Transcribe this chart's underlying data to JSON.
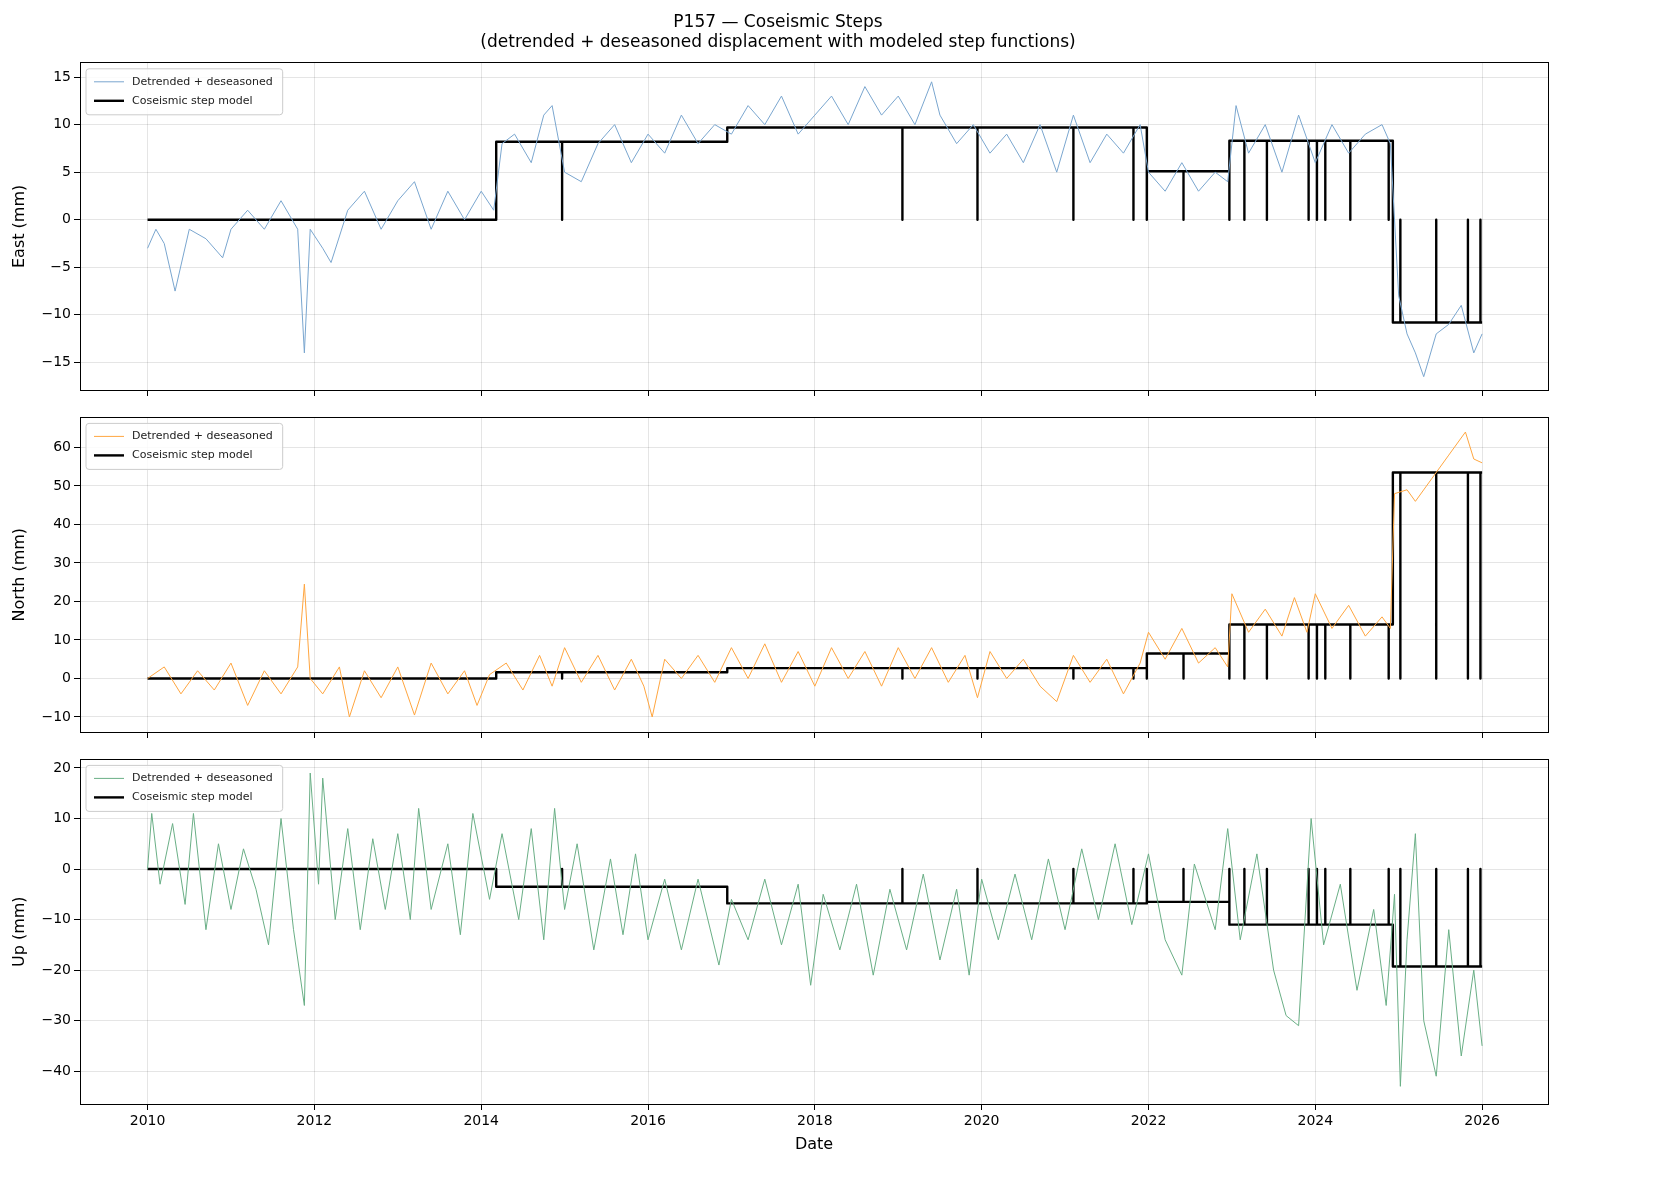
{
  "chart_data": [
    {
      "type": "line",
      "title": "P157 — Coseismic Steps",
      "subtitle": "(detrended + deseasoned displacement with modeled step functions)",
      "ylabel": "East (mm)",
      "xlim": [
        2009.19,
        2026.79
      ],
      "xticks": [
        2010,
        2012,
        2014,
        2016,
        2018,
        2020,
        2022,
        2024,
        2026
      ],
      "ylim": [
        -17.9,
        16.5
      ],
      "yticks": [
        -15,
        -10,
        -5,
        0,
        5,
        10,
        15
      ],
      "grid": true,
      "legend": "top left",
      "tick_labels": "y",
      "marker": "none",
      "line_style": "solid",
      "series": [
        {
          "name": "Detrended + deseasoned",
          "color": "#7aa6cf",
          "x": [
            2010,
            2010.1,
            2010.2,
            2010.33,
            2010.5,
            2010.7,
            2010.9,
            2011.0,
            2011.2,
            2011.4,
            2011.6,
            2011.8,
            2011.88,
            2011.95,
            2012.1,
            2012.2,
            2012.4,
            2012.6,
            2012.8,
            2013,
            2013.2,
            2013.4,
            2013.6,
            2013.8,
            2014.0,
            2014.15,
            2014.25,
            2014.4,
            2014.6,
            2014.75,
            2014.85,
            2015.0,
            2015.2,
            2015.4,
            2015.6,
            2015.8,
            2016,
            2016.2,
            2016.4,
            2016.6,
            2016.8,
            2017.0,
            2017.2,
            2017.4,
            2017.6,
            2017.8,
            2018,
            2018.2,
            2018.4,
            2018.6,
            2018.8,
            2019.0,
            2019.2,
            2019.4,
            2019.5,
            2019.7,
            2019.9,
            2020.1,
            2020.3,
            2020.5,
            2020.7,
            2020.9,
            2021.1,
            2021.3,
            2021.5,
            2021.7,
            2021.9,
            2022.0,
            2022.2,
            2022.4,
            2022.6,
            2022.8,
            2022.95,
            2023.05,
            2023.2,
            2023.4,
            2023.6,
            2023.8,
            2024.0,
            2024.2,
            2024.4,
            2024.6,
            2024.8,
            2024.9,
            2025.0,
            2025.1,
            2025.2,
            2025.3,
            2025.45,
            2025.6,
            2025.75,
            2025.9,
            2026.0
          ],
          "values": [
            -3,
            -1,
            -2.5,
            -7.5,
            -1,
            -2,
            -4,
            -1,
            1,
            -1,
            2,
            -1,
            -14,
            -1,
            -3,
            -4.5,
            1,
            3,
            -1,
            2,
            4,
            -1,
            3,
            0,
            3,
            1,
            8,
            9,
            6,
            11,
            12,
            5,
            4,
            8,
            10,
            6,
            9,
            7,
            11,
            8,
            10,
            9,
            12,
            10,
            13,
            9,
            11,
            13,
            10,
            14,
            11,
            13,
            10,
            14.5,
            11,
            8,
            10,
            7,
            9,
            6,
            10,
            5,
            11,
            6,
            9,
            7,
            10,
            5,
            3,
            6,
            3,
            5,
            4,
            12,
            7,
            10,
            5,
            11,
            6,
            10,
            7,
            9,
            10,
            8,
            -8,
            -12,
            -14,
            -16.5,
            -12,
            -11,
            -9,
            -14,
            -12
          ]
        },
        {
          "name": "Coseismic step model",
          "color": "#000000",
          "x": [
            2010,
            2014.18,
            2014.18,
            2014.97,
            2014.97,
            2014.97,
            2016.95,
            2016.95,
            2019.05,
            2019.05,
            2019.05,
            2019.95,
            2019.95,
            2019.95,
            2021.1,
            2021.1,
            2021.1,
            2021.82,
            2021.82,
            2021.82,
            2021.98,
            2021.98,
            2021.98,
            2022.42,
            2022.42,
            2022.42,
            2022.97,
            2022.97,
            2022.97,
            2023.15,
            2023.15,
            2023.15,
            2023.42,
            2023.42,
            2023.42,
            2023.92,
            2023.92,
            2023.92,
            2024.02,
            2024.02,
            2024.02,
            2024.12,
            2024.12,
            2024.12,
            2024.42,
            2024.42,
            2024.42,
            2024.88,
            2024.88,
            2024.88,
            2024.93,
            2024.93,
            2025.02,
            2025.02,
            2025.02,
            2025.45,
            2025.45,
            2025.45,
            2025.83,
            2025.83,
            2025.83,
            2025.98,
            2025.98,
            2025.98,
            2026
          ],
          "values": [
            0,
            0,
            8.2,
            8.2,
            0,
            8.2,
            8.2,
            9.7,
            9.7,
            0,
            9.7,
            9.7,
            0,
            9.7,
            9.7,
            0,
            9.7,
            9.7,
            0,
            9.7,
            9.7,
            0,
            5.1,
            5.1,
            0,
            5.1,
            5.1,
            0,
            8.3,
            8.3,
            0,
            8.3,
            8.3,
            0,
            8.3,
            8.3,
            0,
            8.3,
            8.3,
            0,
            8.3,
            8.3,
            0,
            8.3,
            8.3,
            0,
            8.3,
            8.3,
            0,
            8.3,
            8.3,
            -10.8,
            -10.8,
            0,
            -10.8,
            -10.8,
            0,
            -10.8,
            -10.8,
            0,
            -10.8,
            -10.8,
            0,
            -10.8,
            -10.8
          ]
        }
      ]
    },
    {
      "type": "line",
      "ylabel": "North (mm)",
      "xlim": [
        2009.19,
        2026.79
      ],
      "xticks": [
        2010,
        2012,
        2014,
        2016,
        2018,
        2020,
        2022,
        2024,
        2026
      ],
      "ylim": [
        -13.9,
        67.8
      ],
      "yticks": [
        -10,
        0,
        10,
        20,
        30,
        40,
        50,
        60
      ],
      "grid": true,
      "legend": "top left",
      "tick_labels": "y",
      "marker": "none",
      "line_style": "solid",
      "series": [
        {
          "name": "Detrended + deseasoned",
          "color": "#ffa640",
          "x": [
            2010,
            2010.2,
            2010.4,
            2010.6,
            2010.8,
            2011.0,
            2011.2,
            2011.4,
            2011.6,
            2011.8,
            2011.88,
            2011.95,
            2012.1,
            2012.3,
            2012.42,
            2012.6,
            2012.8,
            2013.0,
            2013.2,
            2013.4,
            2013.6,
            2013.8,
            2013.95,
            2014.1,
            2014.3,
            2014.5,
            2014.7,
            2014.85,
            2015.0,
            2015.2,
            2015.4,
            2015.6,
            2015.8,
            2015.95,
            2016.05,
            2016.2,
            2016.4,
            2016.6,
            2016.8,
            2017.0,
            2017.2,
            2017.4,
            2017.6,
            2017.8,
            2018.0,
            2018.2,
            2018.4,
            2018.6,
            2018.8,
            2019.0,
            2019.2,
            2019.4,
            2019.6,
            2019.8,
            2019.95,
            2020.1,
            2020.3,
            2020.5,
            2020.7,
            2020.9,
            2021.1,
            2021.3,
            2021.5,
            2021.7,
            2021.9,
            2022.0,
            2022.2,
            2022.4,
            2022.6,
            2022.8,
            2022.95,
            2023.0,
            2023.2,
            2023.4,
            2023.6,
            2023.75,
            2023.9,
            2024.0,
            2024.2,
            2024.4,
            2024.6,
            2024.8,
            2024.9,
            2024.95,
            2025.1,
            2025.2,
            2025.4,
            2025.6,
            2025.8,
            2025.9,
            2026.0
          ],
          "values": [
            0,
            3,
            -4,
            2,
            -3,
            4,
            -7,
            2,
            -4,
            3,
            24.5,
            0,
            -4,
            3,
            -10,
            2,
            -5,
            3,
            -9.5,
            4,
            -4,
            2,
            -7,
            1,
            4,
            -3,
            6,
            -2,
            8,
            -1,
            6,
            -3,
            5,
            -2,
            -10,
            5,
            0,
            6,
            -1,
            8,
            0,
            9,
            -1,
            7,
            -2,
            8,
            0,
            7,
            -2,
            8,
            0,
            8,
            -1,
            6,
            -5,
            7,
            0,
            5,
            -2,
            -6,
            6,
            -1,
            5,
            -4,
            4,
            12,
            5,
            13,
            4,
            8,
            3,
            22,
            12,
            18,
            11,
            21,
            12,
            22,
            13,
            19,
            11,
            16,
            13,
            48,
            49,
            46,
            52,
            58,
            64,
            57,
            56
          ]
        },
        {
          "name": "Coseismic step model",
          "color": "#000000",
          "x": [
            2010,
            2014.18,
            2014.18,
            2014.97,
            2014.97,
            2014.97,
            2016.95,
            2016.95,
            2019.05,
            2019.05,
            2019.05,
            2019.95,
            2019.95,
            2019.95,
            2021.1,
            2021.1,
            2021.1,
            2021.82,
            2021.82,
            2021.82,
            2021.98,
            2021.98,
            2021.98,
            2022.42,
            2022.42,
            2022.42,
            2022.97,
            2022.97,
            2022.97,
            2023.15,
            2023.15,
            2023.15,
            2023.42,
            2023.42,
            2023.42,
            2023.92,
            2023.92,
            2023.92,
            2024.02,
            2024.02,
            2024.02,
            2024.12,
            2024.12,
            2024.12,
            2024.42,
            2024.42,
            2024.42,
            2024.88,
            2024.88,
            2024.88,
            2024.93,
            2024.93,
            2025.02,
            2025.02,
            2025.02,
            2025.45,
            2025.45,
            2025.45,
            2025.83,
            2025.83,
            2025.83,
            2025.98,
            2025.98,
            2025.98,
            2026
          ],
          "values": [
            0,
            0,
            1.6,
            1.6,
            0,
            1.6,
            1.6,
            2.7,
            2.7,
            0,
            2.7,
            2.7,
            0,
            2.7,
            2.7,
            0,
            2.7,
            2.7,
            0,
            2.7,
            2.7,
            0,
            6.5,
            6.5,
            0,
            6.5,
            6.5,
            0,
            14,
            14,
            0,
            14,
            14,
            0,
            14,
            14,
            0,
            14,
            14,
            0,
            14,
            14,
            0,
            14,
            14,
            0,
            14,
            14,
            0,
            14,
            14,
            53.5,
            53.5,
            0,
            53.5,
            53.5,
            0,
            53.5,
            53.5,
            0,
            53.5,
            53.5,
            0,
            53.5,
            53.5
          ]
        }
      ]
    },
    {
      "type": "line",
      "ylabel": "Up (mm)",
      "xlabel": "Date",
      "xlim": [
        2009.19,
        2026.79
      ],
      "xticks": [
        2010,
        2012,
        2014,
        2016,
        2018,
        2020,
        2022,
        2024,
        2026
      ],
      "ylim": [
        -46.5,
        21.7
      ],
      "yticks": [
        -40,
        -30,
        -20,
        -10,
        0,
        10,
        20
      ],
      "grid": true,
      "legend": "top left",
      "marker": "none",
      "line_style": "solid",
      "series": [
        {
          "name": "Detrended + deseasoned",
          "color": "#6aaf86",
          "x": [
            2010,
            2010.05,
            2010.15,
            2010.3,
            2010.45,
            2010.55,
            2010.7,
            2010.85,
            2011.0,
            2011.15,
            2011.3,
            2011.45,
            2011.6,
            2011.75,
            2011.88,
            2011.95,
            2012.05,
            2012.1,
            2012.25,
            2012.4,
            2012.55,
            2012.7,
            2012.85,
            2013.0,
            2013.15,
            2013.25,
            2013.4,
            2013.6,
            2013.75,
            2013.9,
            2014.1,
            2014.25,
            2014.45,
            2014.6,
            2014.75,
            2014.88,
            2015.0,
            2015.15,
            2015.35,
            2015.55,
            2015.7,
            2015.85,
            2016.0,
            2016.2,
            2016.4,
            2016.6,
            2016.85,
            2017.0,
            2017.2,
            2017.4,
            2017.6,
            2017.8,
            2017.95,
            2018.1,
            2018.3,
            2018.5,
            2018.7,
            2018.9,
            2019.1,
            2019.3,
            2019.5,
            2019.7,
            2019.85,
            2020.0,
            2020.2,
            2020.4,
            2020.6,
            2020.8,
            2021.0,
            2021.2,
            2021.4,
            2021.6,
            2021.8,
            2022.0,
            2022.2,
            2022.4,
            2022.55,
            2022.8,
            2022.95,
            2023.1,
            2023.3,
            2023.5,
            2023.65,
            2023.8,
            2023.95,
            2024.1,
            2024.3,
            2024.5,
            2024.7,
            2024.85,
            2024.95,
            2025.02,
            2025.1,
            2025.2,
            2025.3,
            2025.45,
            2025.6,
            2025.75,
            2025.9,
            2026.0
          ],
          "values": [
            0,
            11,
            -3,
            9,
            -7,
            11,
            -12,
            5,
            -8,
            4,
            -4,
            -15,
            10,
            -12,
            -27,
            19,
            -3,
            18,
            -10,
            8,
            -12,
            6,
            -8,
            7,
            -10,
            12,
            -8,
            5,
            -13,
            11,
            -6,
            7,
            -10,
            8,
            -14,
            12,
            -8,
            5,
            -16,
            2,
            -13,
            3,
            -14,
            -2,
            -16,
            -2,
            -19,
            -6,
            -14,
            -2,
            -15,
            -3,
            -23,
            -5,
            -16,
            -3,
            -21,
            -4,
            -16,
            -1,
            -18,
            -4,
            -21,
            -2,
            -14,
            -1,
            -14,
            2,
            -12,
            4,
            -10,
            5,
            -11,
            3,
            -14,
            -21,
            1,
            -12,
            8,
            -14,
            3,
            -20,
            -29,
            -31,
            10,
            -15,
            -3,
            -24,
            -8,
            -27,
            -5,
            -43,
            -14,
            7,
            -30,
            -41,
            -12,
            -37,
            -20,
            -35
          ]
        },
        {
          "name": "Coseismic step model",
          "color": "#000000",
          "x": [
            2010,
            2014.18,
            2014.18,
            2014.97,
            2014.97,
            2014.97,
            2016.95,
            2016.95,
            2019.05,
            2019.05,
            2019.05,
            2019.95,
            2019.95,
            2019.95,
            2021.1,
            2021.1,
            2021.1,
            2021.82,
            2021.82,
            2021.82,
            2021.98,
            2021.98,
            2021.98,
            2022.42,
            2022.42,
            2022.42,
            2022.97,
            2022.97,
            2022.97,
            2023.15,
            2023.15,
            2023.15,
            2023.42,
            2023.42,
            2023.42,
            2023.92,
            2023.92,
            2023.92,
            2024.02,
            2024.02,
            2024.02,
            2024.12,
            2024.12,
            2024.12,
            2024.42,
            2024.42,
            2024.42,
            2024.88,
            2024.88,
            2024.88,
            2024.93,
            2024.93,
            2025.02,
            2025.02,
            2025.02,
            2025.45,
            2025.45,
            2025.45,
            2025.83,
            2025.83,
            2025.83,
            2025.98,
            2025.98,
            2025.98,
            2026
          ],
          "values": [
            0,
            0,
            -3.5,
            -3.5,
            0,
            -3.5,
            -3.5,
            -6.8,
            -6.8,
            0,
            -6.8,
            -6.8,
            0,
            -6.8,
            -6.8,
            0,
            -6.8,
            -6.8,
            0,
            -6.8,
            -6.8,
            0,
            -6.5,
            -6.5,
            0,
            -6.5,
            -6.5,
            0,
            -11,
            -11,
            0,
            -11,
            -11,
            0,
            -11,
            -11,
            0,
            -11,
            -11,
            0,
            -11,
            -11,
            0,
            -11,
            -11,
            0,
            -11,
            -11,
            0,
            -11,
            -11,
            -19.3,
            -19.3,
            0,
            -19.3,
            -19.3,
            0,
            -19.3,
            -19.3,
            0,
            -19.3,
            -19.3,
            0,
            -19.3,
            -19.3
          ]
        }
      ]
    }
  ]
}
